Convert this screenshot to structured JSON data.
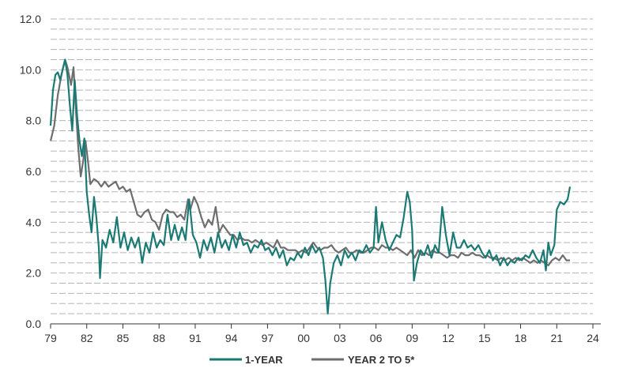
{
  "chart_data": {
    "type": "line",
    "title": "",
    "xlabel": "",
    "ylabel": "",
    "xlim": [
      1979,
      2024
    ],
    "ylim": [
      0,
      12
    ],
    "grid": "horizontal dashed",
    "legend_position": "bottom-center",
    "x_tick_labels": [
      "79",
      "82",
      "85",
      "88",
      "91",
      "94",
      "97",
      "00",
      "03",
      "06",
      "09",
      "12",
      "15",
      "18",
      "21",
      "24"
    ],
    "x_tick_values": [
      1979,
      1982,
      1985,
      1988,
      1991,
      1994,
      1997,
      2000,
      2003,
      2006,
      2009,
      2012,
      2015,
      2018,
      2021,
      2024
    ],
    "y_tick_labels": [
      "0.0",
      "2.0",
      "4.0",
      "6.0",
      "8.0",
      "10.0",
      "12.0"
    ],
    "y_tick_values": [
      0,
      2,
      4,
      6,
      8,
      10,
      12
    ],
    "series": [
      {
        "name": "1-YEAR",
        "color": "#1c7a74",
        "points": [
          [
            1979.0,
            7.8
          ],
          [
            1979.2,
            9.2
          ],
          [
            1979.4,
            9.8
          ],
          [
            1979.6,
            9.9
          ],
          [
            1979.8,
            9.6
          ],
          [
            1980.0,
            10.0
          ],
          [
            1980.2,
            10.4
          ],
          [
            1980.4,
            9.8
          ],
          [
            1980.6,
            8.6
          ],
          [
            1980.8,
            7.6
          ],
          [
            1981.0,
            9.6
          ],
          [
            1981.2,
            8.2
          ],
          [
            1981.4,
            7.2
          ],
          [
            1981.6,
            6.6
          ],
          [
            1981.8,
            7.3
          ],
          [
            1982.0,
            5.2
          ],
          [
            1982.2,
            4.3
          ],
          [
            1982.4,
            3.6
          ],
          [
            1982.6,
            5.0
          ],
          [
            1982.8,
            4.2
          ],
          [
            1983.0,
            3.0
          ],
          [
            1983.1,
            1.8
          ],
          [
            1983.3,
            3.3
          ],
          [
            1983.6,
            3.0
          ],
          [
            1983.9,
            3.7
          ],
          [
            1984.2,
            3.2
          ],
          [
            1984.5,
            4.2
          ],
          [
            1984.8,
            3.0
          ],
          [
            1985.1,
            3.6
          ],
          [
            1985.4,
            2.9
          ],
          [
            1985.7,
            3.4
          ],
          [
            1986.0,
            3.0
          ],
          [
            1986.3,
            3.4
          ],
          [
            1986.6,
            2.4
          ],
          [
            1986.9,
            3.2
          ],
          [
            1987.2,
            2.8
          ],
          [
            1987.5,
            3.6
          ],
          [
            1987.8,
            3.0
          ],
          [
            1988.1,
            3.3
          ],
          [
            1988.4,
            3.1
          ],
          [
            1988.7,
            4.3
          ],
          [
            1989.0,
            3.3
          ],
          [
            1989.3,
            3.9
          ],
          [
            1989.6,
            3.3
          ],
          [
            1989.9,
            3.8
          ],
          [
            1990.2,
            3.3
          ],
          [
            1990.5,
            4.9
          ],
          [
            1990.8,
            3.5
          ],
          [
            1991.1,
            3.2
          ],
          [
            1991.4,
            2.6
          ],
          [
            1991.7,
            3.3
          ],
          [
            1992.0,
            2.9
          ],
          [
            1992.3,
            3.4
          ],
          [
            1992.6,
            2.8
          ],
          [
            1992.9,
            3.6
          ],
          [
            1993.2,
            3.0
          ],
          [
            1993.5,
            3.3
          ],
          [
            1993.8,
            2.9
          ],
          [
            1994.1,
            3.5
          ],
          [
            1994.4,
            3.0
          ],
          [
            1994.7,
            3.6
          ],
          [
            1995.0,
            3.1
          ],
          [
            1995.3,
            3.2
          ],
          [
            1995.6,
            2.8
          ],
          [
            1995.9,
            3.1
          ],
          [
            1996.2,
            3.0
          ],
          [
            1996.5,
            3.3
          ],
          [
            1996.8,
            2.9
          ],
          [
            1997.1,
            3.0
          ],
          [
            1997.4,
            2.7
          ],
          [
            1997.7,
            3.0
          ],
          [
            1998.0,
            2.6
          ],
          [
            1998.3,
            2.9
          ],
          [
            1998.6,
            2.3
          ],
          [
            1998.9,
            2.6
          ],
          [
            1999.2,
            2.5
          ],
          [
            1999.5,
            2.8
          ],
          [
            1999.8,
            2.6
          ],
          [
            2000.1,
            3.0
          ],
          [
            2000.4,
            2.7
          ],
          [
            2000.7,
            3.1
          ],
          [
            2001.0,
            2.8
          ],
          [
            2001.3,
            3.0
          ],
          [
            2001.6,
            2.6
          ],
          [
            2001.8,
            1.7
          ],
          [
            2002.0,
            0.4
          ],
          [
            2002.2,
            1.6
          ],
          [
            2002.5,
            2.4
          ],
          [
            2002.8,
            2.7
          ],
          [
            2003.1,
            2.3
          ],
          [
            2003.4,
            2.9
          ],
          [
            2003.7,
            2.6
          ],
          [
            2004.0,
            2.8
          ],
          [
            2004.3,
            2.5
          ],
          [
            2004.6,
            2.9
          ],
          [
            2004.9,
            2.8
          ],
          [
            2005.2,
            3.1
          ],
          [
            2005.5,
            2.8
          ],
          [
            2005.8,
            3.0
          ],
          [
            2006.0,
            4.6
          ],
          [
            2006.2,
            3.2
          ],
          [
            2006.5,
            4.0
          ],
          [
            2006.8,
            3.3
          ],
          [
            2007.1,
            2.9
          ],
          [
            2007.4,
            3.2
          ],
          [
            2007.7,
            3.5
          ],
          [
            2008.0,
            3.4
          ],
          [
            2008.3,
            4.2
          ],
          [
            2008.6,
            5.2
          ],
          [
            2008.8,
            4.8
          ],
          [
            2009.0,
            3.7
          ],
          [
            2009.15,
            1.7
          ],
          [
            2009.4,
            2.4
          ],
          [
            2009.7,
            2.9
          ],
          [
            2010.0,
            2.7
          ],
          [
            2010.3,
            3.1
          ],
          [
            2010.6,
            2.6
          ],
          [
            2010.9,
            3.1
          ],
          [
            2011.2,
            2.8
          ],
          [
            2011.5,
            4.6
          ],
          [
            2011.8,
            3.5
          ],
          [
            2012.1,
            2.7
          ],
          [
            2012.4,
            3.6
          ],
          [
            2012.7,
            3.0
          ],
          [
            2013.0,
            3.0
          ],
          [
            2013.3,
            3.3
          ],
          [
            2013.6,
            3.0
          ],
          [
            2013.9,
            3.1
          ],
          [
            2014.2,
            2.9
          ],
          [
            2014.5,
            3.1
          ],
          [
            2014.8,
            2.8
          ],
          [
            2015.1,
            2.6
          ],
          [
            2015.4,
            2.9
          ],
          [
            2015.7,
            2.5
          ],
          [
            2016.0,
            2.7
          ],
          [
            2016.3,
            2.3
          ],
          [
            2016.6,
            2.6
          ],
          [
            2016.9,
            2.3
          ],
          [
            2017.2,
            2.5
          ],
          [
            2017.5,
            2.4
          ],
          [
            2017.8,
            2.6
          ],
          [
            2018.1,
            2.5
          ],
          [
            2018.4,
            2.7
          ],
          [
            2018.7,
            2.6
          ],
          [
            2019.0,
            2.9
          ],
          [
            2019.3,
            2.6
          ],
          [
            2019.6,
            2.4
          ],
          [
            2019.9,
            2.9
          ],
          [
            2020.1,
            2.1
          ],
          [
            2020.3,
            3.2
          ],
          [
            2020.5,
            2.7
          ],
          [
            2020.8,
            3.1
          ],
          [
            2021.0,
            4.5
          ],
          [
            2021.3,
            4.8
          ],
          [
            2021.6,
            4.7
          ],
          [
            2021.9,
            4.9
          ],
          [
            2022.1,
            5.4
          ]
        ]
      },
      {
        "name": "YEAR 2 TO 5*",
        "color": "#6e6e6e",
        "points": [
          [
            1979.0,
            7.2
          ],
          [
            1979.3,
            7.8
          ],
          [
            1979.6,
            9.0
          ],
          [
            1979.9,
            9.8
          ],
          [
            1980.2,
            10.4
          ],
          [
            1980.4,
            10.1
          ],
          [
            1980.7,
            9.4
          ],
          [
            1980.9,
            10.1
          ],
          [
            1981.1,
            8.4
          ],
          [
            1981.3,
            6.9
          ],
          [
            1981.5,
            5.8
          ],
          [
            1981.7,
            6.4
          ],
          [
            1981.9,
            7.2
          ],
          [
            1982.1,
            6.4
          ],
          [
            1982.3,
            5.5
          ],
          [
            1982.6,
            5.7
          ],
          [
            1982.9,
            5.6
          ],
          [
            1983.2,
            5.4
          ],
          [
            1983.5,
            5.6
          ],
          [
            1983.8,
            5.4
          ],
          [
            1984.1,
            5.5
          ],
          [
            1984.4,
            5.6
          ],
          [
            1984.7,
            5.3
          ],
          [
            1985.0,
            5.4
          ],
          [
            1985.3,
            5.2
          ],
          [
            1985.6,
            5.3
          ],
          [
            1985.9,
            4.8
          ],
          [
            1986.2,
            4.3
          ],
          [
            1986.5,
            4.2
          ],
          [
            1986.8,
            4.4
          ],
          [
            1987.1,
            4.5
          ],
          [
            1987.4,
            4.1
          ],
          [
            1987.7,
            4.0
          ],
          [
            1988.0,
            3.7
          ],
          [
            1988.3,
            4.3
          ],
          [
            1988.6,
            4.5
          ],
          [
            1988.9,
            4.4
          ],
          [
            1989.2,
            4.4
          ],
          [
            1989.5,
            4.2
          ],
          [
            1989.8,
            4.3
          ],
          [
            1990.1,
            4.1
          ],
          [
            1990.4,
            4.9
          ],
          [
            1990.6,
            4.5
          ],
          [
            1990.9,
            5.0
          ],
          [
            1991.2,
            4.7
          ],
          [
            1991.5,
            4.2
          ],
          [
            1991.8,
            3.8
          ],
          [
            1992.1,
            4.1
          ],
          [
            1992.4,
            3.9
          ],
          [
            1992.7,
            4.6
          ],
          [
            1993.0,
            3.6
          ],
          [
            1993.3,
            3.9
          ],
          [
            1993.6,
            3.7
          ],
          [
            1993.9,
            3.5
          ],
          [
            1994.2,
            3.5
          ],
          [
            1994.5,
            3.3
          ],
          [
            1994.8,
            3.4
          ],
          [
            1995.1,
            3.3
          ],
          [
            1995.4,
            3.3
          ],
          [
            1995.7,
            3.2
          ],
          [
            1996.0,
            3.3
          ],
          [
            1996.3,
            3.2
          ],
          [
            1996.6,
            3.1
          ],
          [
            1996.9,
            3.2
          ],
          [
            1997.2,
            3.1
          ],
          [
            1997.5,
            3.0
          ],
          [
            1997.8,
            3.3
          ],
          [
            1998.1,
            3.0
          ],
          [
            1998.4,
            3.0
          ],
          [
            1998.7,
            2.9
          ],
          [
            1999.0,
            2.9
          ],
          [
            1999.3,
            2.9
          ],
          [
            1999.6,
            2.8
          ],
          [
            1999.9,
            2.9
          ],
          [
            2000.2,
            2.8
          ],
          [
            2000.5,
            3.0
          ],
          [
            2000.8,
            3.2
          ],
          [
            2001.1,
            3.0
          ],
          [
            2001.4,
            2.9
          ],
          [
            2001.7,
            3.0
          ],
          [
            2002.0,
            3.0
          ],
          [
            2002.3,
            3.1
          ],
          [
            2002.6,
            2.9
          ],
          [
            2002.9,
            2.8
          ],
          [
            2003.2,
            2.9
          ],
          [
            2003.5,
            3.0
          ],
          [
            2003.8,
            2.8
          ],
          [
            2004.1,
            2.8
          ],
          [
            2004.4,
            2.9
          ],
          [
            2004.7,
            2.8
          ],
          [
            2005.0,
            2.8
          ],
          [
            2005.3,
            2.9
          ],
          [
            2005.6,
            3.0
          ],
          [
            2005.9,
            3.0
          ],
          [
            2006.2,
            2.9
          ],
          [
            2006.5,
            3.1
          ],
          [
            2006.8,
            3.0
          ],
          [
            2007.1,
            3.0
          ],
          [
            2007.4,
            2.9
          ],
          [
            2007.7,
            3.0
          ],
          [
            2008.0,
            2.9
          ],
          [
            2008.3,
            2.8
          ],
          [
            2008.6,
            2.7
          ],
          [
            2008.9,
            2.9
          ],
          [
            2009.2,
            2.6
          ],
          [
            2009.5,
            2.9
          ],
          [
            2009.8,
            2.7
          ],
          [
            2010.1,
            2.8
          ],
          [
            2010.4,
            2.7
          ],
          [
            2010.7,
            2.9
          ],
          [
            2011.0,
            2.8
          ],
          [
            2011.3,
            2.8
          ],
          [
            2011.6,
            2.7
          ],
          [
            2011.9,
            2.6
          ],
          [
            2012.2,
            2.7
          ],
          [
            2012.5,
            2.7
          ],
          [
            2012.8,
            2.6
          ],
          [
            2013.1,
            2.8
          ],
          [
            2013.4,
            2.7
          ],
          [
            2013.7,
            2.7
          ],
          [
            2014.0,
            2.8
          ],
          [
            2014.3,
            2.7
          ],
          [
            2014.6,
            2.7
          ],
          [
            2014.9,
            2.6
          ],
          [
            2015.2,
            2.7
          ],
          [
            2015.5,
            2.6
          ],
          [
            2015.8,
            2.6
          ],
          [
            2016.1,
            2.5
          ],
          [
            2016.4,
            2.6
          ],
          [
            2016.7,
            2.5
          ],
          [
            2017.0,
            2.6
          ],
          [
            2017.3,
            2.5
          ],
          [
            2017.6,
            2.6
          ],
          [
            2017.9,
            2.5
          ],
          [
            2018.2,
            2.6
          ],
          [
            2018.5,
            2.5
          ],
          [
            2018.8,
            2.4
          ],
          [
            2019.1,
            2.5
          ],
          [
            2019.4,
            2.4
          ],
          [
            2019.7,
            2.5
          ],
          [
            2020.0,
            2.4
          ],
          [
            2020.3,
            2.3
          ],
          [
            2020.6,
            2.5
          ],
          [
            2020.9,
            2.6
          ],
          [
            2021.2,
            2.5
          ],
          [
            2021.5,
            2.7
          ],
          [
            2021.8,
            2.5
          ],
          [
            2022.1,
            2.5
          ]
        ]
      }
    ]
  }
}
